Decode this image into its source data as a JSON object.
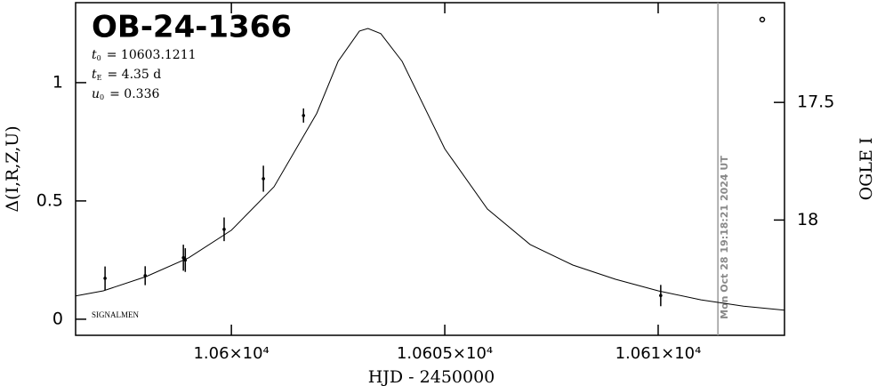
{
  "chart_data": {
    "type": "errorbar",
    "title": "OB-24-1366",
    "params": [
      {
        "symbol": "t",
        "subscript": "0",
        "text": "= 10603.1211"
      },
      {
        "symbol": "t",
        "subscript": "E",
        "text": "= 4.35 d"
      },
      {
        "symbol": "u",
        "subscript": "0",
        "text": "= 0.336"
      }
    ],
    "credit": "SIGNALMEN",
    "timestamp": "Mon Oct 28 19:18:21 2024 UT",
    "marker_x": 10611.4,
    "x_label": "HJD - 2450000",
    "y_label": "Δ(I,R,Z,U)",
    "y2_label": "OGLE I",
    "color": "#000000",
    "model": {
      "x": [
        10596.35,
        10597,
        10598,
        10599,
        10600,
        10601,
        10602,
        10602.5,
        10603,
        10603.2,
        10603.5,
        10604,
        10605,
        10606,
        10607,
        10608,
        10609,
        10610,
        10611,
        10612,
        10612.96
      ],
      "values": [
        0.098,
        0.12,
        0.18,
        0.26,
        0.376,
        0.56,
        0.87,
        1.09,
        1.218,
        1.229,
        1.207,
        1.09,
        0.72,
        0.466,
        0.316,
        0.229,
        0.169,
        0.12,
        0.082,
        0.055,
        0.038
      ]
    },
    "points": {
      "x": [
        10597.04,
        10597.98,
        10598.875,
        10598.92,
        10599.83,
        10600.75,
        10601.69,
        10610.06
      ],
      "values": [
        0.173,
        0.184,
        0.26,
        0.25,
        0.38,
        0.594,
        0.861,
        0.1
      ],
      "errors": [
        0.05,
        0.04,
        0.055,
        0.05,
        0.05,
        0.055,
        0.03,
        0.045
      ]
    },
    "xlim": [
      10596.35,
      10612.96
    ],
    "xticks": [
      {
        "value": 10600,
        "label": "1.06×10⁴"
      },
      {
        "value": 10605,
        "label": "1.0605×10⁴"
      },
      {
        "value": 10610,
        "label": "1.061×10⁴"
      }
    ],
    "ylim": [
      -0.068,
      1.338
    ],
    "yticks": [
      0,
      0.5,
      1
    ],
    "y2lim": [
      18.49,
      17.076
    ],
    "y2ticks": [
      17.5,
      18
    ]
  }
}
